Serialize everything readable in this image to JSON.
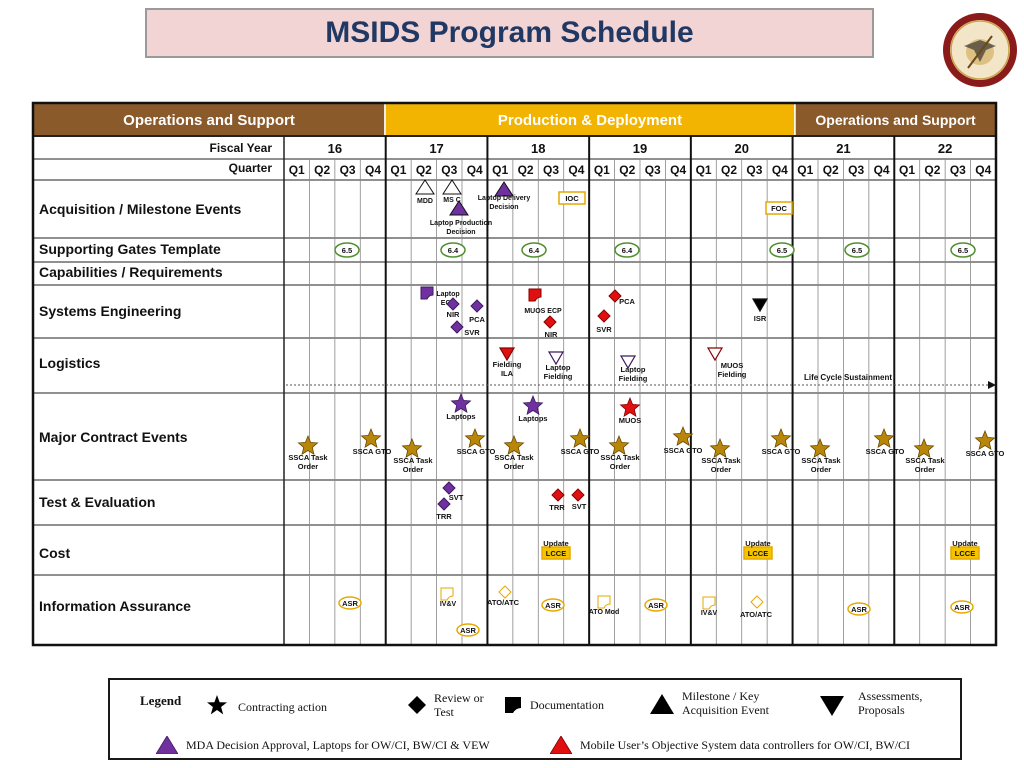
{
  "title": "MSIDS Program Schedule",
  "seal_text": "UNITED STATES MARINE CORPS",
  "phases": [
    {
      "label": "Operations and Support",
      "color": "#8a5a2b"
    },
    {
      "label": "Production & Deployment",
      "color": "#f2b400"
    },
    {
      "label": "Operations and Support",
      "color": "#8a5a2b"
    }
  ],
  "fiscal_year_label": "Fiscal Year",
  "quarter_label": "Quarter",
  "fiscal_years": [
    "16",
    "17",
    "18",
    "19",
    "20",
    "21",
    "22"
  ],
  "quarters": [
    "Q1",
    "Q2",
    "Q3",
    "Q4"
  ],
  "rows": [
    "Acquisition / Milestone Events",
    "Supporting Gates Template",
    "Capabilities / Requirements",
    "Systems Engineering",
    "Logistics",
    "Major Contract Events",
    "Test & Evaluation",
    "Cost",
    "Information Assurance"
  ],
  "colors": {
    "gold": "#b8860b",
    "purple": "#7030a0",
    "red": "#e01010",
    "box_fill": "#fff2a8",
    "box_stroke": "#e6a800",
    "gate_stroke": "#4f8f2f"
  },
  "markers": [
    {
      "kind": "tri-up",
      "color": "hollow",
      "label": "MDD"
    },
    {
      "kind": "tri-up",
      "color": "hollow",
      "label": "MS C"
    },
    {
      "kind": "tri-up",
      "color": "purple",
      "label": "Laptop Production Decision"
    },
    {
      "kind": "tri-up",
      "color": "purple",
      "label": "Laptop Delivery Decision"
    },
    {
      "kind": "box",
      "color": "yellow-hollow",
      "label": "IOC"
    },
    {
      "kind": "box",
      "color": "yellow-hollow",
      "label": "FOC"
    },
    {
      "kind": "gate",
      "label": "6.5"
    },
    {
      "kind": "gate",
      "label": "6.4"
    },
    {
      "kind": "gate",
      "label": "6.4"
    },
    {
      "kind": "gate",
      "label": "6.4"
    },
    {
      "kind": "gate",
      "label": "6.5"
    },
    {
      "kind": "gate",
      "label": "6.5"
    },
    {
      "kind": "gate",
      "label": "6.5"
    },
    {
      "kind": "doc",
      "color": "purple",
      "label": "Laptop ECP"
    },
    {
      "kind": "diamond",
      "color": "purple",
      "label": "NIR"
    },
    {
      "kind": "diamond",
      "color": "purple",
      "label": "PCA"
    },
    {
      "kind": "diamond",
      "color": "purple",
      "label": "SVR"
    },
    {
      "kind": "doc",
      "color": "red",
      "label": "MUOS ECP"
    },
    {
      "kind": "diamond",
      "color": "red",
      "label": "NIR"
    },
    {
      "kind": "diamond",
      "color": "red",
      "label": "PCA"
    },
    {
      "kind": "diamond",
      "color": "red",
      "label": "SVR"
    },
    {
      "kind": "tri-down",
      "color": "black",
      "label": "ISR"
    },
    {
      "kind": "tri-down",
      "color": "red",
      "label": "Fielding ILA"
    },
    {
      "kind": "tri-down",
      "color": "purple-hollow",
      "label": "Laptop Fielding"
    },
    {
      "kind": "tri-down",
      "color": "purple-hollow",
      "label": "Laptop Fielding"
    },
    {
      "kind": "tri-down",
      "color": "red-hollow",
      "label": "MUOS Fielding"
    },
    {
      "kind": "text",
      "label": "Life Cycle Sustainment"
    },
    {
      "kind": "star",
      "color": "purple",
      "label": "Laptops"
    },
    {
      "kind": "star",
      "color": "purple",
      "label": "Laptops"
    },
    {
      "kind": "star",
      "color": "red",
      "label": "MUOS"
    },
    {
      "kind": "star",
      "color": "gold",
      "label": "SSCA Task Order"
    },
    {
      "kind": "star",
      "color": "gold",
      "label": "SSCA GTO"
    },
    {
      "kind": "star",
      "color": "gold",
      "label": "SSCA Task Order"
    },
    {
      "kind": "star",
      "color": "gold",
      "label": "SSCA GTO"
    },
    {
      "kind": "star",
      "color": "gold",
      "label": "SSCA Task Order"
    },
    {
      "kind": "star",
      "color": "gold",
      "label": "SSCA GTO"
    },
    {
      "kind": "star",
      "color": "gold",
      "label": "SSCA Task Order"
    },
    {
      "kind": "star",
      "color": "gold",
      "label": "SSCA GTO"
    },
    {
      "kind": "star",
      "color": "gold",
      "label": "SSCA Task Order"
    },
    {
      "kind": "star",
      "color": "gold",
      "label": "SSCA GTO"
    },
    {
      "kind": "star",
      "color": "gold",
      "label": "SSCA Task Order"
    },
    {
      "kind": "star",
      "color": "gold",
      "label": "SSCA GTO"
    },
    {
      "kind": "star",
      "color": "gold",
      "label": "SSCA Task Order"
    },
    {
      "kind": "star",
      "color": "gold",
      "label": "SSCA GTO"
    },
    {
      "kind": "diamond",
      "color": "purple",
      "label": "SVT"
    },
    {
      "kind": "diamond",
      "color": "purple",
      "label": "TRR"
    },
    {
      "kind": "diamond",
      "color": "red",
      "label": "TRR"
    },
    {
      "kind": "diamond",
      "color": "red",
      "label": "SVT"
    },
    {
      "kind": "box",
      "color": "yellow",
      "label": "LCCE",
      "above": "Update"
    },
    {
      "kind": "box",
      "color": "yellow",
      "label": "LCCE",
      "above": "Update"
    },
    {
      "kind": "box",
      "color": "yellow",
      "label": "LCCE",
      "above": "Update"
    },
    {
      "kind": "oval",
      "label": "ASR"
    },
    {
      "kind": "doc",
      "color": "yellow-hollow",
      "label": "IV&V"
    },
    {
      "kind": "oval",
      "label": "ASR"
    },
    {
      "kind": "diamond",
      "color": "yellow-hollow",
      "label": "ATO/ATC"
    },
    {
      "kind": "oval",
      "label": "ASR"
    },
    {
      "kind": "doc",
      "color": "yellow-hollow",
      "label": "ATO Mod"
    },
    {
      "kind": "oval",
      "label": "ASR"
    },
    {
      "kind": "doc",
      "color": "yellow-hollow",
      "label": "IV&V"
    },
    {
      "kind": "diamond",
      "color": "yellow-hollow",
      "label": "ATO/ATC"
    },
    {
      "kind": "oval",
      "label": "ASR"
    },
    {
      "kind": "oval",
      "label": "ASR"
    }
  ],
  "legend": {
    "title": "Legend",
    "items": [
      {
        "icon": "star",
        "label": "Contracting action"
      },
      {
        "icon": "diamond",
        "label": "Review or Test"
      },
      {
        "icon": "doc",
        "label": "Documentation"
      },
      {
        "icon": "tri-up",
        "label": "Milestone / Key Acquisition Event"
      },
      {
        "icon": "tri-down",
        "label": "Assessments, Proposals"
      },
      {
        "icon": "tri-up-purple",
        "label": "MDA Decision Approval, Laptops for OW/CI, BW/CI & VEW"
      },
      {
        "icon": "tri-up-red",
        "label": "Mobile User’s Objective System data controllers for OW/CI, BW/CI"
      }
    ]
  }
}
